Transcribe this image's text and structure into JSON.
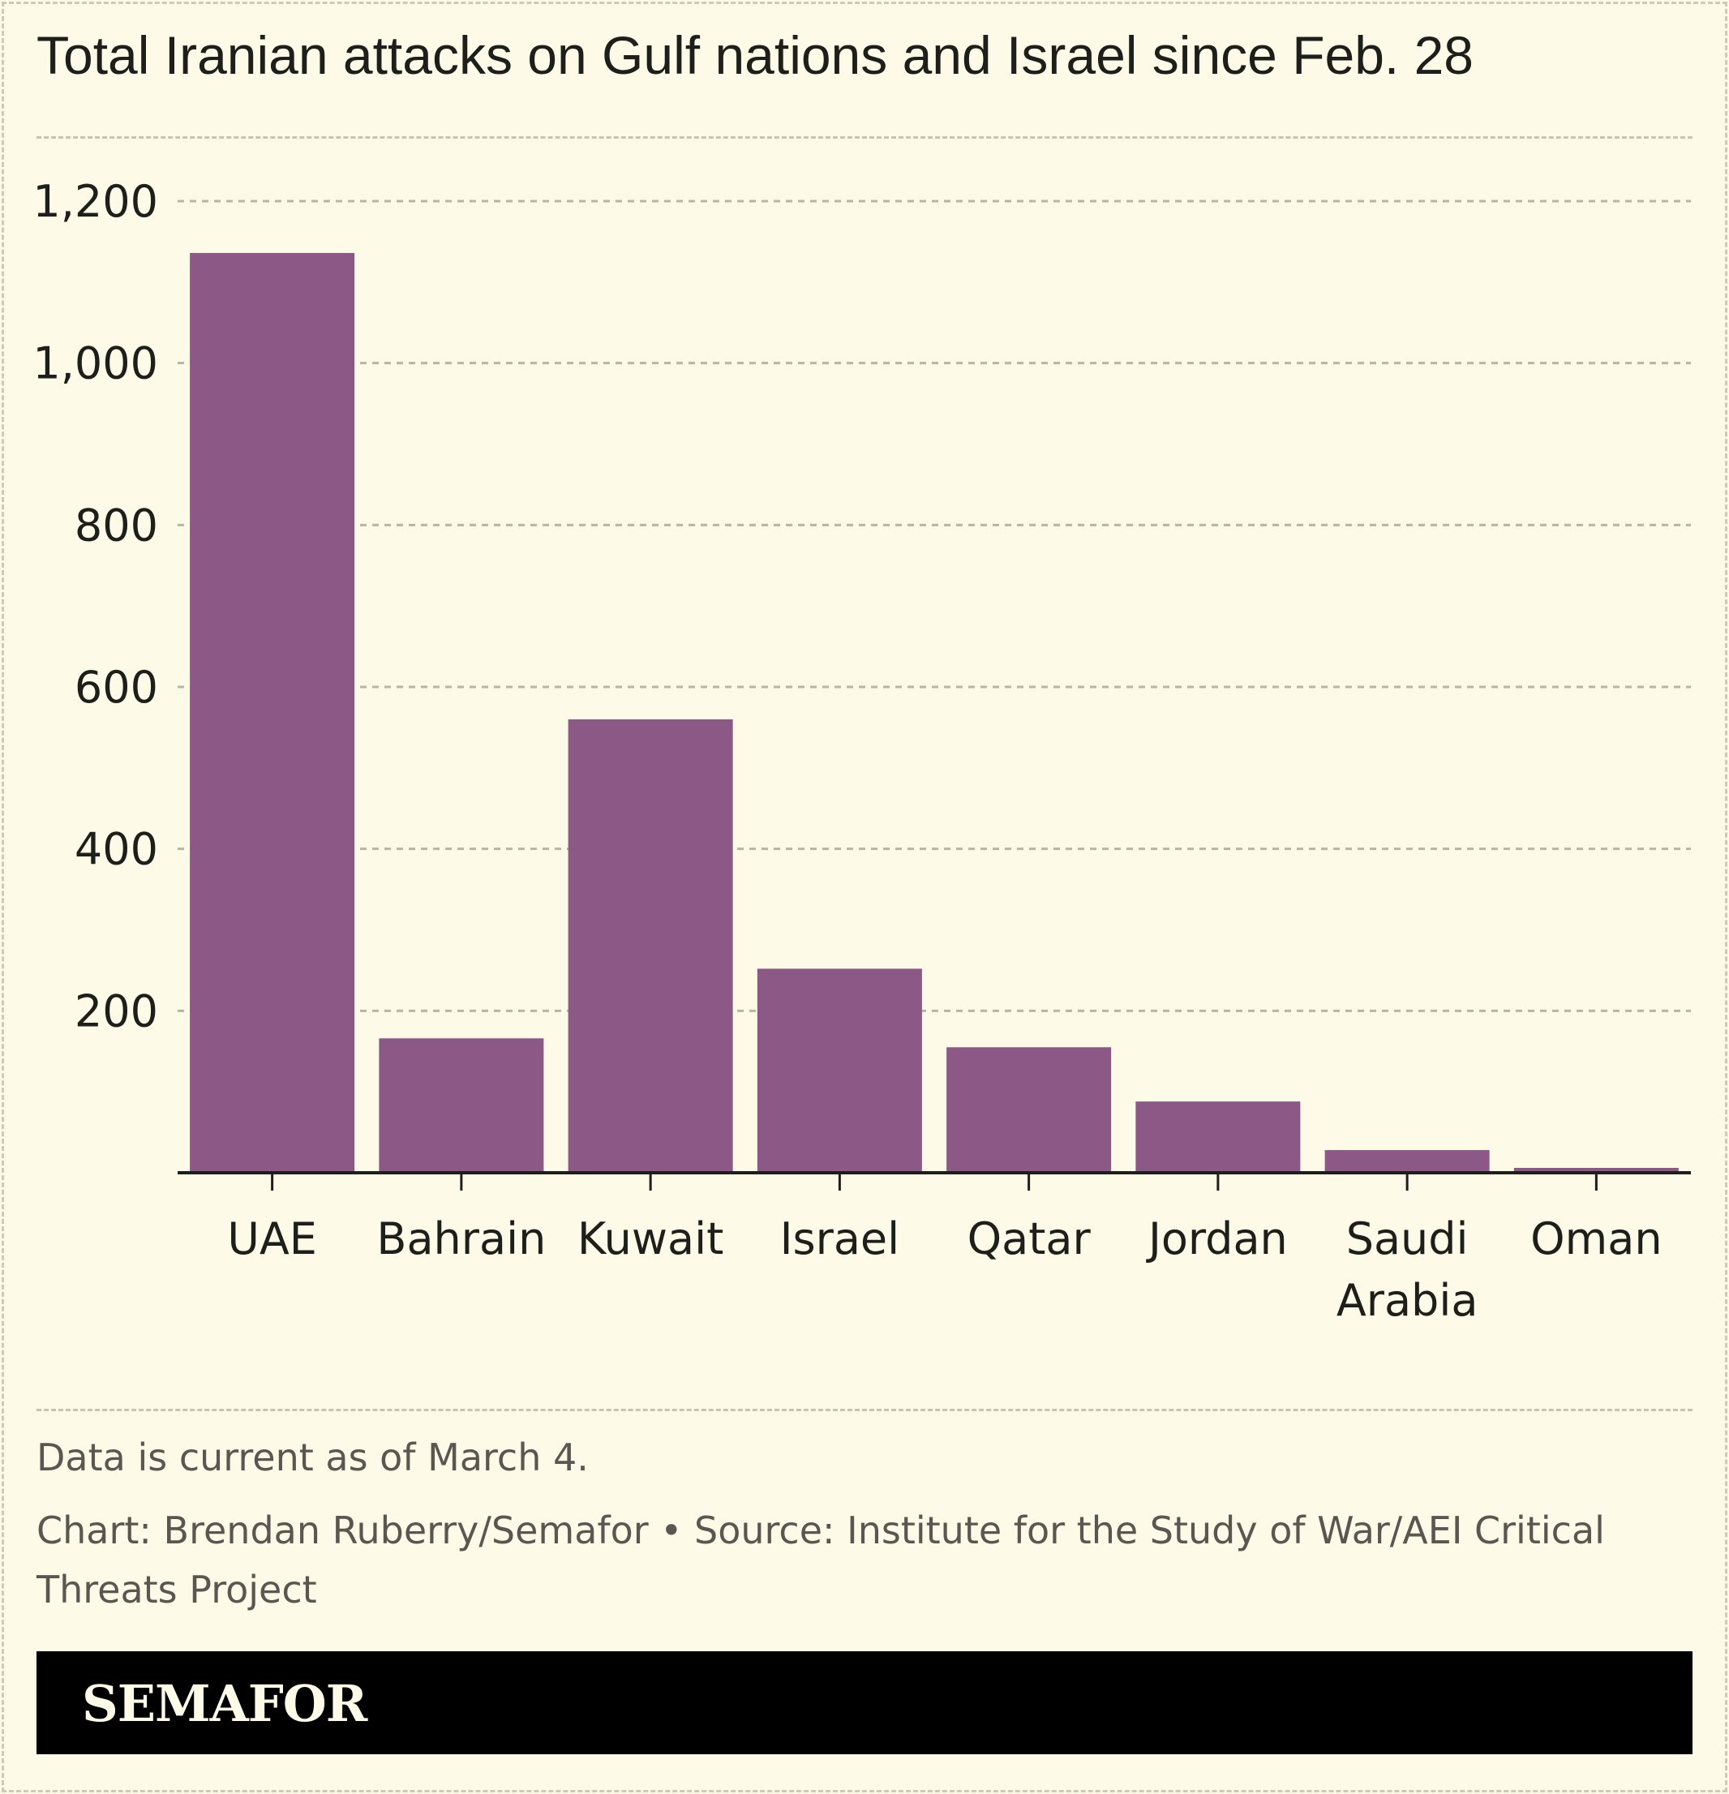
{
  "chart_data": {
    "type": "bar",
    "title": "Total Iranian attacks on Gulf nations and Israel since Feb. 28",
    "categories": [
      "UAE",
      "Bahrain",
      "Kuwait",
      "Israel",
      "Qatar",
      "Jordan",
      "Saudi Arabia",
      "Oman"
    ],
    "category_lines": [
      [
        "UAE"
      ],
      [
        "Bahrain"
      ],
      [
        "Kuwait"
      ],
      [
        "Israel"
      ],
      [
        "Qatar"
      ],
      [
        "Jordan"
      ],
      [
        "Saudi",
        "Arabia"
      ],
      [
        "Oman"
      ]
    ],
    "values": [
      1136,
      166,
      560,
      252,
      155,
      88,
      28,
      6
    ],
    "ylim": [
      0,
      1200
    ],
    "yticks": [
      200,
      400,
      600,
      800,
      1000,
      1200
    ],
    "ytick_labels": [
      "200",
      "400",
      "600",
      "800",
      "1,000",
      "1,200"
    ],
    "xlabel": "",
    "ylabel": "",
    "grid": true,
    "bar_color": "#8c5886"
  },
  "footer": {
    "note": "Data is current as of March 4.",
    "credit_line1": "Chart: Brendan Ruberry/Semafor • Source: Institute for the Study of War/AEI Critical",
    "credit_line2": "Threats Project",
    "brand": "SEMAFOR"
  }
}
